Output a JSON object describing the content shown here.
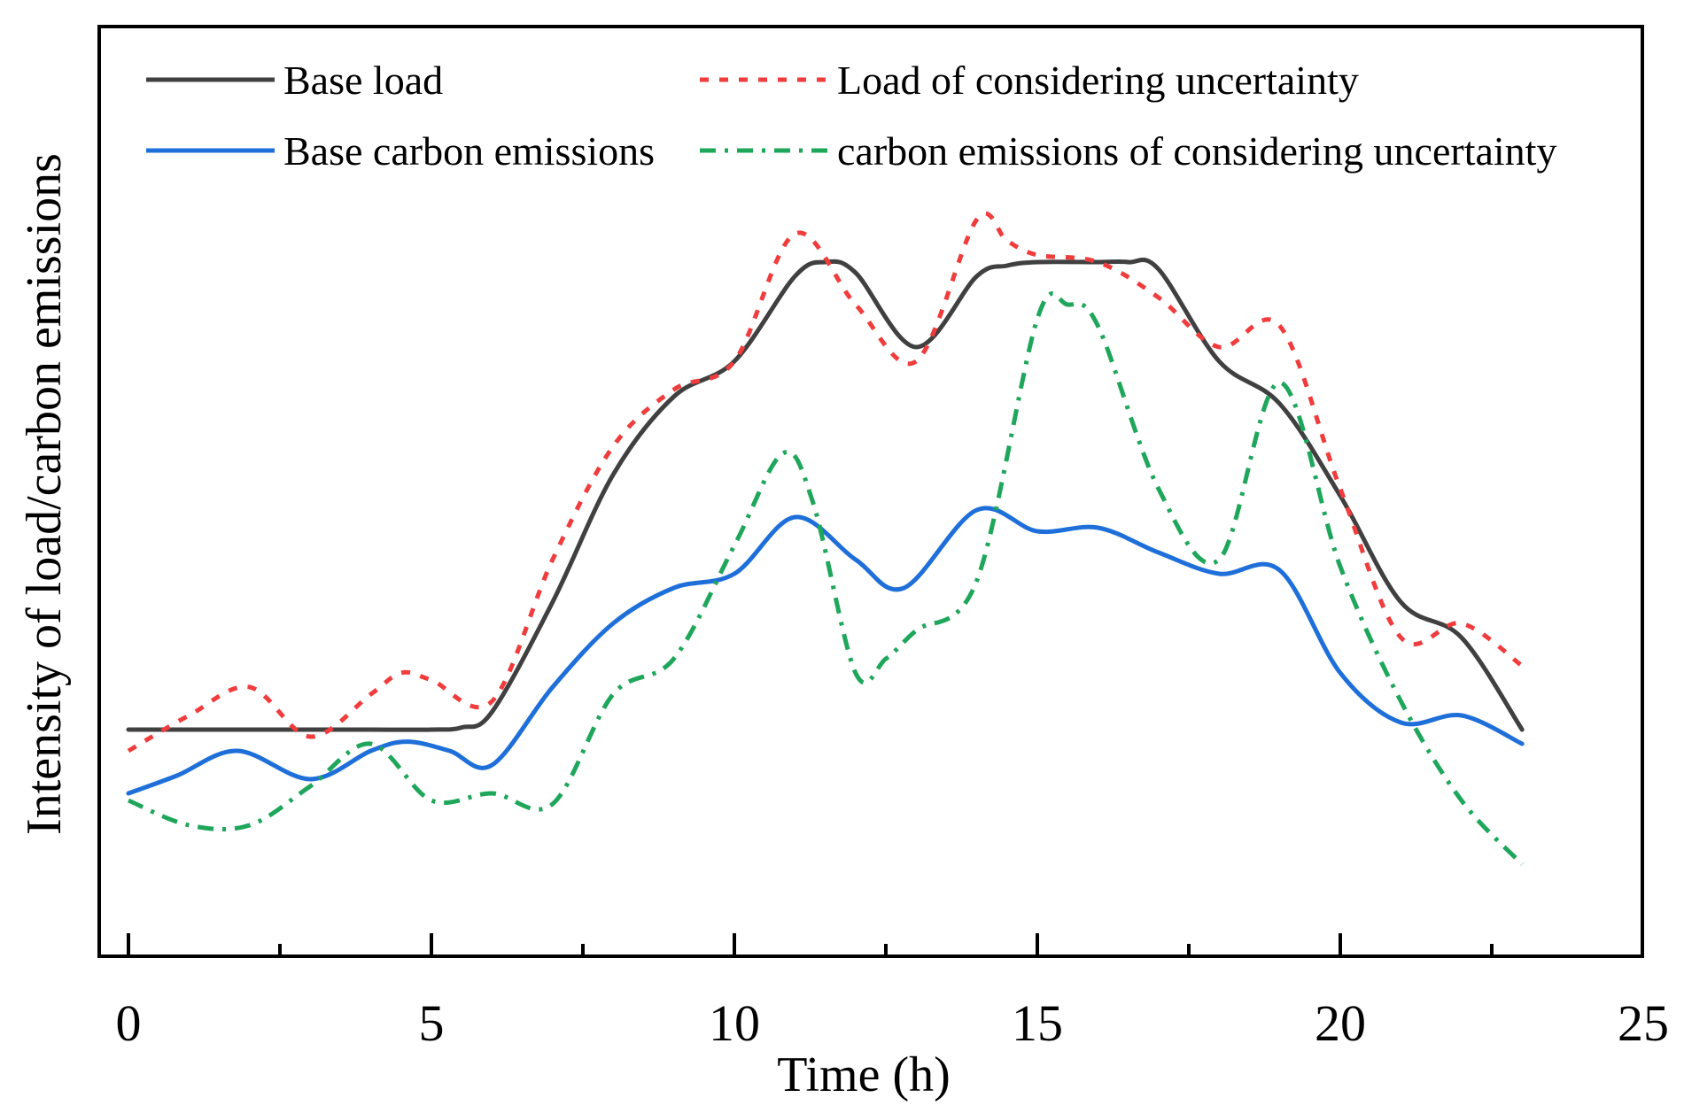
{
  "chart_data": {
    "type": "line",
    "title": "",
    "xlabel": "Time (h)",
    "ylabel": "Intensity of load/carbon emissions",
    "xlim": [
      -0.5,
      25.2
    ],
    "ylim": [
      0,
      100
    ],
    "xticks": [
      0,
      5,
      10,
      15,
      20,
      25
    ],
    "xtick_labels": [
      "0",
      "5",
      "10",
      "15",
      "20",
      "25"
    ],
    "minor_xticks": [
      2.5,
      7.5,
      12.5,
      17.5,
      22.5
    ],
    "grid": false,
    "legend_position": "top",
    "series": [
      {
        "name": "Base load",
        "color": "#404040",
        "style": "solid",
        "x": [
          0,
          1,
          2,
          3,
          4,
          5,
          5.5,
          6,
          7,
          8,
          9,
          10,
          11,
          11.5,
          12,
          13,
          14,
          14.5,
          15,
          16,
          16.5,
          17,
          18,
          19,
          20,
          21,
          22,
          23
        ],
        "y": [
          22.0,
          22.0,
          22.0,
          22.0,
          22.0,
          22.0,
          22.3,
          24.5,
          40.0,
          58.0,
          69.0,
          74.0,
          86.0,
          88.0,
          86.5,
          76.0,
          86.0,
          87.5,
          88.0,
          88.0,
          88.0,
          87.0,
          74.0,
          68.0,
          55.0,
          40.0,
          35.0,
          22.0
        ]
      },
      {
        "name": "Load of considering uncertainty",
        "color": "#f03c3c",
        "style": "dotted",
        "x": [
          0,
          1,
          2,
          3,
          4,
          4.5,
          5,
          6,
          7,
          8,
          9,
          10,
          11,
          12,
          13,
          14,
          14.5,
          15,
          16,
          17,
          18,
          19,
          20,
          21,
          22,
          23
        ],
        "y": [
          19.0,
          24.0,
          28.0,
          21.0,
          27.0,
          30.0,
          29.0,
          26.0,
          46.0,
          62.0,
          70.0,
          74.0,
          92.0,
          82.0,
          74.0,
          94.0,
          91.0,
          89.0,
          88.0,
          83.0,
          76.0,
          79.0,
          56.0,
          35.0,
          37.0,
          31.0
        ]
      },
      {
        "name": "Base carbon emissions",
        "color": "#1e6fd9",
        "style": "solid",
        "x": [
          0,
          0.8,
          1.8,
          3,
          4,
          4.6,
          5.3,
          6,
          7,
          8,
          9,
          10,
          11,
          12,
          12.8,
          14,
          15,
          16,
          17,
          18,
          19,
          20,
          21,
          22,
          23
        ],
        "y": [
          13.0,
          15.5,
          19.0,
          15.0,
          19.0,
          20.3,
          19.0,
          17.0,
          28.0,
          37.0,
          42.0,
          44.0,
          52.0,
          46.0,
          42.0,
          53.0,
          50.0,
          50.5,
          47.0,
          44.0,
          44.5,
          30.0,
          23.0,
          24.0,
          20.0
        ]
      },
      {
        "name": "carbon emissions of considering uncertainty",
        "color": "#1ea65a",
        "style": "dashdot",
        "x": [
          0,
          1,
          2,
          3,
          4,
          5,
          6,
          7,
          8,
          9,
          10,
          10.8,
          11.3,
          12,
          12.5,
          13,
          14,
          15,
          15.5,
          16,
          17,
          18,
          19,
          20,
          21,
          22,
          23
        ],
        "y": [
          12.0,
          8.5,
          8.5,
          14.0,
          20.0,
          12.0,
          13.0,
          11.5,
          27.0,
          32.0,
          48.0,
          61.0,
          54.0,
          30.0,
          32.0,
          36.0,
          43.0,
          80.0,
          82.0,
          79.0,
          56.0,
          46.0,
          71.0,
          45.0,
          26.0,
          12.0,
          3.0
        ]
      }
    ]
  }
}
